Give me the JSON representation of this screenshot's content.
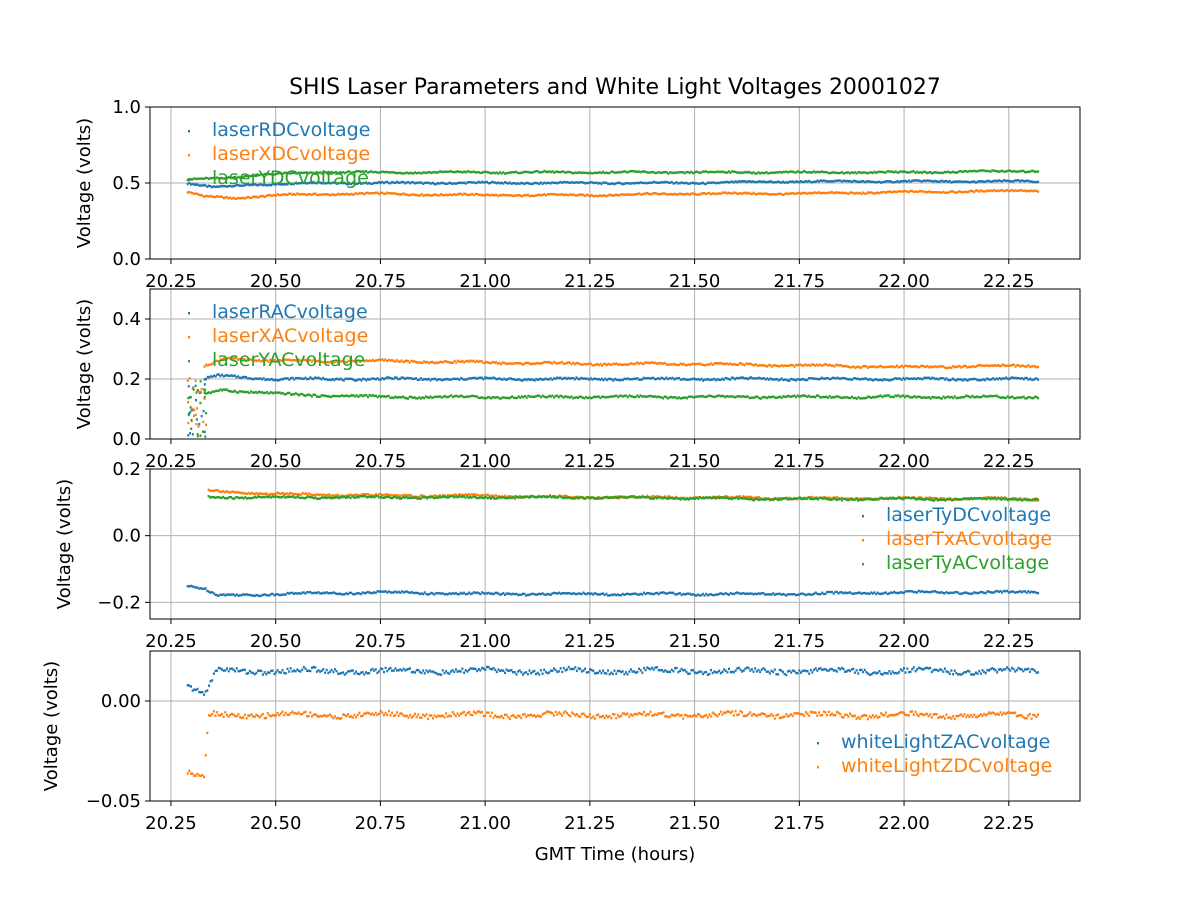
{
  "title": "SHIS Laser Parameters and White Light Voltages 20001027",
  "xlabel": "GMT Time (hours)",
  "colors": {
    "blue": "#1f77b4",
    "orange": "#ff7f0e",
    "green": "#2ca02c"
  },
  "chart_data": [
    {
      "type": "scatter",
      "ylabel": "Voltage (volts)",
      "xlim": [
        20.2,
        22.42
      ],
      "ylim": [
        0.0,
        1.0
      ],
      "xticks": [
        "20.25",
        "20.50",
        "20.75",
        "21.00",
        "21.25",
        "21.50",
        "21.75",
        "22.00",
        "22.25"
      ],
      "yticks": [
        "0.0",
        "0.5",
        "1.0"
      ],
      "legend": "top-left",
      "grid": true,
      "series": [
        {
          "name": "laserRDCvoltage",
          "color": "#1f77b4",
          "x": [
            20.29,
            20.35,
            20.45,
            20.6,
            20.8,
            21.0,
            21.25,
            21.5,
            21.75,
            22.0,
            22.32
          ],
          "y": [
            0.5,
            0.47,
            0.49,
            0.5,
            0.5,
            0.5,
            0.5,
            0.5,
            0.51,
            0.51,
            0.51
          ]
        },
        {
          "name": "laserXDCvoltage",
          "color": "#ff7f0e",
          "x": [
            20.29,
            20.33,
            20.4,
            20.5,
            20.7,
            21.0,
            21.25,
            21.5,
            21.75,
            22.0,
            22.32
          ],
          "y": [
            0.44,
            0.41,
            0.4,
            0.42,
            0.43,
            0.42,
            0.42,
            0.43,
            0.43,
            0.44,
            0.45
          ]
        },
        {
          "name": "laserYDCvoltage",
          "color": "#2ca02c",
          "x": [
            20.29,
            20.35,
            20.45,
            20.6,
            20.8,
            21.0,
            21.25,
            21.5,
            21.75,
            22.0,
            22.32
          ],
          "y": [
            0.52,
            0.53,
            0.55,
            0.57,
            0.57,
            0.57,
            0.57,
            0.57,
            0.57,
            0.57,
            0.58
          ]
        }
      ]
    },
    {
      "type": "scatter",
      "ylabel": "Voltage (volts)",
      "xlim": [
        20.2,
        22.42
      ],
      "ylim": [
        0.0,
        0.5
      ],
      "xticks": [
        "20.25",
        "20.50",
        "20.75",
        "21.00",
        "21.25",
        "21.50",
        "21.75",
        "22.00",
        "22.25"
      ],
      "yticks": [
        "0.0",
        "0.2",
        "0.4"
      ],
      "legend": "top-left",
      "grid": true,
      "series": [
        {
          "name": "laserRACvoltage",
          "color": "#1f77b4",
          "x": [
            20.33,
            20.36,
            20.5,
            20.75,
            21.0,
            21.25,
            21.5,
            21.75,
            22.0,
            22.32
          ],
          "y": [
            0.2,
            0.21,
            0.2,
            0.2,
            0.2,
            0.2,
            0.2,
            0.2,
            0.2,
            0.2
          ]
        },
        {
          "name": "laserXACvoltage",
          "color": "#ff7f0e",
          "x": [
            20.33,
            20.38,
            20.5,
            20.75,
            21.0,
            21.25,
            21.5,
            21.75,
            22.0,
            22.32
          ],
          "y": [
            0.24,
            0.27,
            0.26,
            0.26,
            0.255,
            0.25,
            0.25,
            0.245,
            0.24,
            0.245
          ]
        },
        {
          "name": "laserYACvoltage",
          "color": "#2ca02c",
          "x": [
            20.33,
            20.37,
            20.5,
            20.75,
            21.0,
            21.25,
            21.5,
            21.75,
            22.0,
            22.32
          ],
          "y": [
            0.15,
            0.165,
            0.15,
            0.14,
            0.14,
            0.14,
            0.14,
            0.14,
            0.14,
            0.14
          ]
        }
      ]
    },
    {
      "type": "scatter",
      "ylabel": "Voltage (volts)",
      "xlim": [
        20.2,
        22.42
      ],
      "ylim": [
        -0.25,
        0.2
      ],
      "xticks": [
        "20.25",
        "20.50",
        "20.75",
        "21.00",
        "21.25",
        "21.50",
        "21.75",
        "22.00",
        "22.25"
      ],
      "yticks": [
        "−0.2",
        "0.0",
        "0.2"
      ],
      "legend": "center-right",
      "grid": true,
      "series": [
        {
          "name": "laserTyDCvoltage",
          "color": "#1f77b4",
          "x": [
            20.29,
            20.33,
            20.36,
            20.5,
            20.75,
            21.0,
            21.25,
            21.5,
            21.75,
            22.0,
            22.32
          ],
          "y": [
            -0.15,
            -0.16,
            -0.18,
            -0.175,
            -0.17,
            -0.175,
            -0.175,
            -0.175,
            -0.175,
            -0.17,
            -0.17
          ]
        },
        {
          "name": "laserTxACvoltage",
          "color": "#ff7f0e",
          "x": [
            20.34,
            20.4,
            20.5,
            20.75,
            21.0,
            21.25,
            21.5,
            21.75,
            22.0,
            22.32
          ],
          "y": [
            0.135,
            0.13,
            0.125,
            0.12,
            0.12,
            0.115,
            0.115,
            0.112,
            0.112,
            0.11
          ]
        },
        {
          "name": "laserTyACvoltage",
          "color": "#2ca02c",
          "x": [
            20.34,
            20.4,
            20.5,
            20.75,
            21.0,
            21.25,
            21.5,
            21.75,
            22.0,
            22.32
          ],
          "y": [
            0.115,
            0.115,
            0.115,
            0.115,
            0.115,
            0.115,
            0.112,
            0.11,
            0.11,
            0.11
          ]
        }
      ]
    },
    {
      "type": "scatter",
      "ylabel": "Voltage (volts)",
      "xlabel": "GMT Time (hours)",
      "xlim": [
        20.2,
        22.42
      ],
      "ylim": [
        -0.05,
        0.025
      ],
      "xticks": [
        "20.25",
        "20.50",
        "20.75",
        "21.00",
        "21.25",
        "21.50",
        "21.75",
        "22.00",
        "22.25"
      ],
      "yticks": [
        "−0.05",
        "0.00"
      ],
      "legend": "lower-right",
      "grid": true,
      "series": [
        {
          "name": "whiteLightZACvoltage",
          "color": "#1f77b4",
          "x": [
            20.29,
            20.33,
            20.36,
            20.5,
            20.75,
            21.0,
            21.25,
            21.5,
            21.75,
            22.0,
            22.32
          ],
          "y": [
            0.008,
            0.003,
            0.015,
            0.015,
            0.015,
            0.015,
            0.015,
            0.015,
            0.015,
            0.015,
            0.015
          ]
        },
        {
          "name": "whiteLightZDCvoltage",
          "color": "#ff7f0e",
          "x": [
            20.29,
            20.33,
            20.34,
            20.5,
            20.75,
            21.0,
            21.25,
            21.5,
            21.75,
            22.0,
            22.32
          ],
          "y": [
            -0.036,
            -0.038,
            -0.007,
            -0.007,
            -0.007,
            -0.007,
            -0.007,
            -0.007,
            -0.007,
            -0.007,
            -0.007
          ]
        }
      ]
    }
  ]
}
